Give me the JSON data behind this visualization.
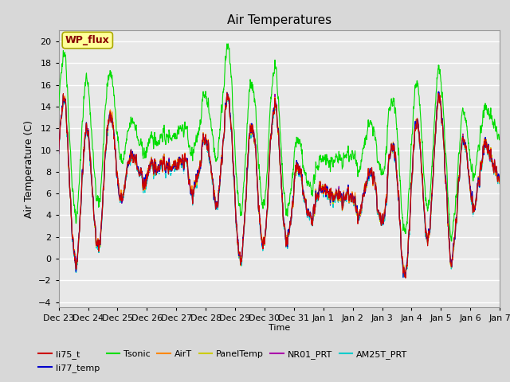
{
  "title": "Air Temperatures",
  "ylabel": "Air Temperature (C)",
  "xlabel": "Time",
  "ylim": [
    -4.5,
    21
  ],
  "yticks": [
    -4,
    -2,
    0,
    2,
    4,
    6,
    8,
    10,
    12,
    14,
    16,
    18,
    20
  ],
  "series": {
    "li75_t": {
      "color": "#cc0000",
      "lw": 0.8,
      "zorder": 6
    },
    "li77_temp": {
      "color": "#0000cc",
      "lw": 0.8,
      "zorder": 5
    },
    "Tsonic": {
      "color": "#00dd00",
      "lw": 0.8,
      "zorder": 4
    },
    "AirT": {
      "color": "#ff8800",
      "lw": 0.8,
      "zorder": 3
    },
    "PanelTemp": {
      "color": "#cccc00",
      "lw": 0.8,
      "zorder": 2
    },
    "NR01_PRT": {
      "color": "#aa00aa",
      "lw": 0.8,
      "zorder": 1
    },
    "AM25T_PRT": {
      "color": "#00cccc",
      "lw": 0.8,
      "zorder": 0
    }
  },
  "wp_flux_label": "WP_flux",
  "wp_flux_box_color": "#ffff99",
  "wp_flux_text_color": "#880000",
  "legend_order": [
    "li75_t",
    "li77_temp",
    "Tsonic",
    "AirT",
    "PanelTemp",
    "NR01_PRT",
    "AM25T_PRT"
  ],
  "tick_labels": [
    "Dec 23",
    "Dec 24",
    "Dec 25",
    "Dec 26",
    "Dec 27",
    "Dec 28",
    "Dec 29",
    "Dec 30",
    "Dec 31",
    "Jan 1",
    "Jan 2",
    "Jan 3",
    "Jan 4",
    "Jan 5",
    "Jan 6",
    "Jan 7"
  ],
  "n_points": 2000,
  "n_days": 15
}
